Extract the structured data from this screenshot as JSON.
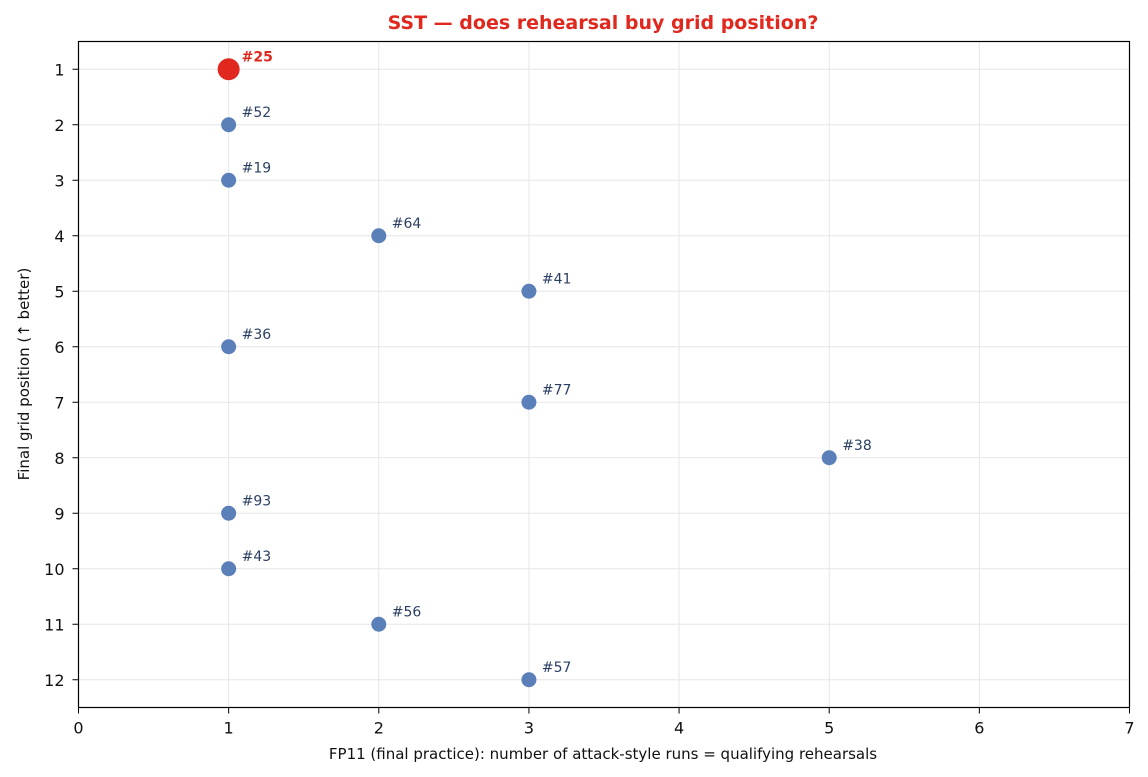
{
  "chart_data": {
    "type": "scatter",
    "title": "SST — does rehearsal buy grid position?",
    "xlabel": "FP11 (final practice): number of attack-style runs = qualifying rehearsals",
    "ylabel": "Final grid position (↑ better)",
    "xlim": [
      0,
      7
    ],
    "ylim": [
      12.5,
      0.5
    ],
    "y_inverted": true,
    "grid": true,
    "x_ticks": [
      0,
      1,
      2,
      3,
      4,
      5,
      6,
      7
    ],
    "y_ticks": [
      1,
      2,
      3,
      4,
      5,
      6,
      7,
      8,
      9,
      10,
      11,
      12
    ],
    "points": [
      {
        "label": "#25",
        "x": 1,
        "y": 1,
        "highlight": true
      },
      {
        "label": "#52",
        "x": 1,
        "y": 2
      },
      {
        "label": "#19",
        "x": 1,
        "y": 3
      },
      {
        "label": "#64",
        "x": 2,
        "y": 4
      },
      {
        "label": "#41",
        "x": 3,
        "y": 5
      },
      {
        "label": "#36",
        "x": 1,
        "y": 6
      },
      {
        "label": "#77",
        "x": 3,
        "y": 7
      },
      {
        "label": "#38",
        "x": 5,
        "y": 8
      },
      {
        "label": "#93",
        "x": 1,
        "y": 9
      },
      {
        "label": "#43",
        "x": 1,
        "y": 10
      },
      {
        "label": "#56",
        "x": 2,
        "y": 11
      },
      {
        "label": "#57",
        "x": 3,
        "y": 12
      }
    ],
    "colors": {
      "point": "#5b7fb8",
      "highlight": "#e0281e",
      "label": "#2b3f63",
      "title": "#e0281e",
      "grid": "#e6e6e6",
      "axis": "#000000"
    }
  }
}
